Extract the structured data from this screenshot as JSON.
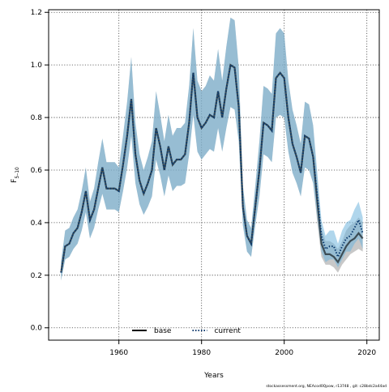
{
  "chart_data": {
    "type": "line",
    "xlabel": "Years",
    "ylabel": "F",
    "ylabel_sub": "5–10",
    "footer": "stockassessment.org, NEAcod0Qpow, r13748 , git: c28bdc2a44ad",
    "x": [
      1946,
      1947,
      1948,
      1949,
      1950,
      1951,
      1952,
      1953,
      1954,
      1955,
      1956,
      1957,
      1958,
      1959,
      1960,
      1961,
      1962,
      1963,
      1964,
      1965,
      1966,
      1967,
      1968,
      1969,
      1970,
      1971,
      1972,
      1973,
      1974,
      1975,
      1976,
      1977,
      1978,
      1979,
      1980,
      1981,
      1982,
      1983,
      1984,
      1985,
      1986,
      1987,
      1988,
      1989,
      1990,
      1991,
      1992,
      1993,
      1994,
      1995,
      1996,
      1997,
      1998,
      1999,
      2000,
      2001,
      2002,
      2003,
      2004,
      2005,
      2006,
      2007,
      2008,
      2009,
      2010,
      2011,
      2012,
      2013,
      2014,
      2015,
      2016,
      2017,
      2018,
      2019
    ],
    "xlim": [
      1943,
      2023
    ],
    "xticks": [
      1960,
      1980,
      2000,
      2020
    ],
    "ylim": [
      -0.047,
      1.21
    ],
    "yticks": [
      {
        "value": 0,
        "label": "0.0"
      },
      0.2,
      0.4,
      0.6,
      0.8,
      {
        "value": 1,
        "label": "1.0"
      },
      1.2
    ],
    "grid": true,
    "legend": "bottom",
    "series": [
      {
        "name": "base",
        "color": "#000000",
        "band_color": "#9a9a9a",
        "dash": "solid",
        "values": [
          0.21,
          0.31,
          0.32,
          0.36,
          0.38,
          0.44,
          0.52,
          0.41,
          0.45,
          0.53,
          0.61,
          0.53,
          0.53,
          0.53,
          0.52,
          0.62,
          0.73,
          0.87,
          0.66,
          0.56,
          0.51,
          0.55,
          0.6,
          0.76,
          0.69,
          0.6,
          0.69,
          0.62,
          0.64,
          0.64,
          0.66,
          0.78,
          0.97,
          0.8,
          0.76,
          0.78,
          0.81,
          0.8,
          0.9,
          0.8,
          0.91,
          1.0,
          0.99,
          0.84,
          0.46,
          0.35,
          0.32,
          0.46,
          0.6,
          0.78,
          0.77,
          0.75,
          0.95,
          0.97,
          0.95,
          0.8,
          0.7,
          0.65,
          0.59,
          0.73,
          0.72,
          0.65,
          0.48,
          0.32,
          0.28,
          0.28,
          0.27,
          0.25,
          0.28,
          0.31,
          0.33,
          0.34,
          0.36,
          0.34
        ],
        "upper": [
          0.25,
          0.37,
          0.38,
          0.42,
          0.45,
          0.52,
          0.61,
          0.48,
          0.53,
          0.63,
          0.72,
          0.63,
          0.63,
          0.63,
          0.61,
          0.73,
          0.86,
          1.03,
          0.78,
          0.66,
          0.6,
          0.65,
          0.71,
          0.9,
          0.81,
          0.71,
          0.81,
          0.73,
          0.76,
          0.76,
          0.78,
          0.92,
          1.14,
          0.94,
          0.9,
          0.92,
          0.96,
          0.94,
          1.06,
          0.94,
          1.07,
          1.18,
          1.17,
          0.99,
          0.54,
          0.41,
          0.38,
          0.54,
          0.71,
          0.92,
          0.91,
          0.89,
          1.12,
          1.14,
          1.12,
          0.94,
          0.83,
          0.77,
          0.7,
          0.86,
          0.85,
          0.77,
          0.57,
          0.38,
          0.33,
          0.33,
          0.32,
          0.3,
          0.33,
          0.37,
          0.39,
          0.4,
          0.42,
          0.4
        ],
        "lower": [
          0.18,
          0.26,
          0.27,
          0.3,
          0.32,
          0.37,
          0.44,
          0.34,
          0.38,
          0.45,
          0.51,
          0.45,
          0.45,
          0.45,
          0.44,
          0.52,
          0.61,
          0.73,
          0.55,
          0.47,
          0.43,
          0.46,
          0.5,
          0.64,
          0.58,
          0.5,
          0.58,
          0.52,
          0.54,
          0.54,
          0.55,
          0.66,
          0.81,
          0.67,
          0.64,
          0.66,
          0.68,
          0.67,
          0.76,
          0.67,
          0.76,
          0.84,
          0.83,
          0.71,
          0.39,
          0.29,
          0.27,
          0.39,
          0.5,
          0.66,
          0.65,
          0.63,
          0.8,
          0.81,
          0.8,
          0.67,
          0.59,
          0.55,
          0.5,
          0.61,
          0.6,
          0.55,
          0.4,
          0.27,
          0.24,
          0.24,
          0.23,
          0.21,
          0.24,
          0.26,
          0.28,
          0.29,
          0.3,
          0.29
        ]
      },
      {
        "name": "current",
        "color": "#0b3a6e",
        "band_color": "#6fb4dc",
        "dash": "dotted",
        "values": [
          0.21,
          0.31,
          0.32,
          0.36,
          0.38,
          0.44,
          0.52,
          0.41,
          0.45,
          0.53,
          0.61,
          0.53,
          0.53,
          0.53,
          0.52,
          0.62,
          0.73,
          0.87,
          0.66,
          0.56,
          0.51,
          0.55,
          0.6,
          0.76,
          0.69,
          0.6,
          0.69,
          0.62,
          0.64,
          0.64,
          0.66,
          0.78,
          0.97,
          0.8,
          0.76,
          0.78,
          0.81,
          0.8,
          0.9,
          0.8,
          0.91,
          1.0,
          0.99,
          0.84,
          0.46,
          0.35,
          0.32,
          0.46,
          0.6,
          0.78,
          0.77,
          0.75,
          0.95,
          0.97,
          0.95,
          0.8,
          0.7,
          0.65,
          0.59,
          0.73,
          0.72,
          0.65,
          0.5,
          0.35,
          0.3,
          0.31,
          0.31,
          0.27,
          0.31,
          0.34,
          0.35,
          0.38,
          0.41,
          0.36
        ],
        "upper": [
          0.25,
          0.37,
          0.38,
          0.42,
          0.45,
          0.52,
          0.61,
          0.48,
          0.53,
          0.63,
          0.72,
          0.63,
          0.63,
          0.63,
          0.61,
          0.73,
          0.86,
          1.03,
          0.78,
          0.66,
          0.6,
          0.65,
          0.71,
          0.9,
          0.81,
          0.71,
          0.81,
          0.73,
          0.76,
          0.76,
          0.78,
          0.92,
          1.14,
          0.94,
          0.9,
          0.92,
          0.96,
          0.94,
          1.06,
          0.94,
          1.07,
          1.18,
          1.17,
          0.99,
          0.54,
          0.41,
          0.38,
          0.54,
          0.71,
          0.92,
          0.91,
          0.89,
          1.12,
          1.14,
          1.12,
          0.94,
          0.83,
          0.77,
          0.7,
          0.86,
          0.85,
          0.77,
          0.59,
          0.41,
          0.35,
          0.37,
          0.37,
          0.32,
          0.37,
          0.4,
          0.41,
          0.45,
          0.48,
          0.42
        ],
        "lower": [
          0.18,
          0.26,
          0.27,
          0.3,
          0.32,
          0.37,
          0.44,
          0.34,
          0.38,
          0.45,
          0.51,
          0.45,
          0.45,
          0.45,
          0.44,
          0.52,
          0.61,
          0.73,
          0.55,
          0.47,
          0.43,
          0.46,
          0.5,
          0.64,
          0.58,
          0.5,
          0.58,
          0.52,
          0.54,
          0.54,
          0.55,
          0.66,
          0.81,
          0.67,
          0.64,
          0.66,
          0.68,
          0.67,
          0.76,
          0.67,
          0.76,
          0.84,
          0.83,
          0.71,
          0.39,
          0.29,
          0.27,
          0.39,
          0.5,
          0.66,
          0.65,
          0.63,
          0.8,
          0.81,
          0.8,
          0.67,
          0.59,
          0.55,
          0.5,
          0.61,
          0.6,
          0.55,
          0.42,
          0.29,
          0.25,
          0.26,
          0.26,
          0.23,
          0.26,
          0.29,
          0.29,
          0.32,
          0.34,
          0.3
        ]
      }
    ]
  }
}
